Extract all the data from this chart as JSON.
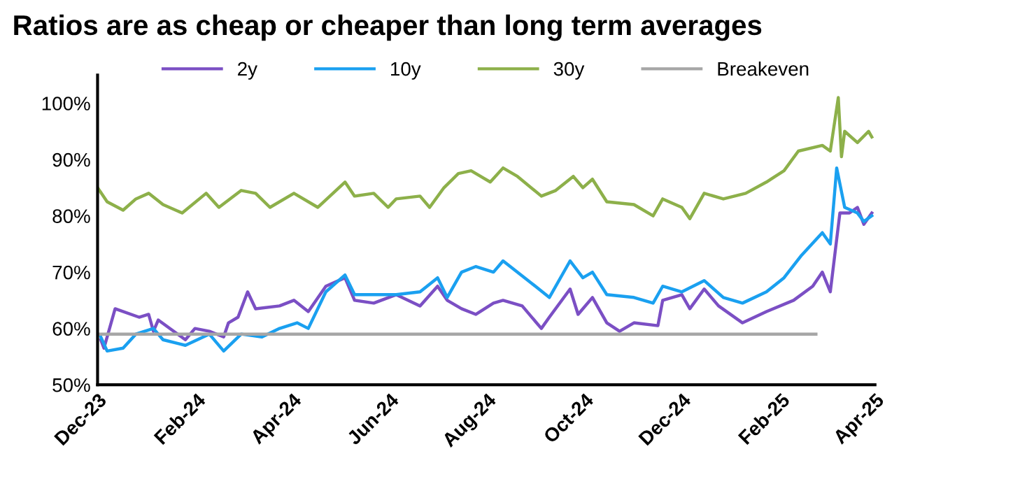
{
  "chart_data": {
    "type": "line",
    "title": "Ratios are as cheap or cheaper than long term averages",
    "series": [
      {
        "name": "2y",
        "color": "#7b4fc4",
        "x": [
          "2023-12-03",
          "2023-12-05",
          "2023-12-12",
          "2023-12-27",
          "2024-01-02",
          "2024-01-05",
          "2024-01-08",
          "2024-01-25",
          "2024-01-31",
          "2024-02-09",
          "2024-02-18",
          "2024-02-21",
          "2024-02-27",
          "2024-03-04",
          "2024-03-09",
          "2024-03-24",
          "2024-04-02",
          "2024-04-11",
          "2024-04-22",
          "2024-05-04",
          "2024-05-10",
          "2024-05-22",
          "2024-06-05",
          "2024-06-20",
          "2024-07-01",
          "2024-07-07",
          "2024-07-16",
          "2024-07-25",
          "2024-08-05",
          "2024-08-11",
          "2024-08-23",
          "2024-09-04",
          "2024-09-09",
          "2024-09-22",
          "2024-09-27",
          "2024-10-06",
          "2024-10-15",
          "2024-10-23",
          "2024-11-01",
          "2024-11-16",
          "2024-11-19",
          "2024-12-01",
          "2024-12-06",
          "2024-12-15",
          "2024-12-24",
          "2025-01-08",
          "2025-01-23",
          "2025-02-09",
          "2025-02-21",
          "2025-02-27",
          "2025-03-04",
          "2025-03-10",
          "2025-03-16",
          "2025-03-21",
          "2025-03-25",
          "2025-03-30"
        ],
        "values": [
          58,
          56.5,
          63.5,
          62,
          62.5,
          59.5,
          61.5,
          58,
          60,
          59.5,
          58.5,
          61,
          62,
          66.5,
          63.5,
          64,
          65,
          63,
          67.5,
          69,
          65,
          64.5,
          66,
          64,
          67.5,
          65,
          63.5,
          62.5,
          64.5,
          65,
          64,
          60,
          62,
          67,
          62.5,
          65.5,
          61,
          59.5,
          61,
          60.5,
          65,
          66,
          63.5,
          67,
          64,
          61,
          63,
          65,
          67.5,
          70,
          66.5,
          80.5,
          80.5,
          81.5,
          78.5,
          80.5
        ]
      },
      {
        "name": "10y",
        "color": "#1aa0f0",
        "x": [
          "2023-12-03",
          "2023-12-07",
          "2023-12-17",
          "2023-12-25",
          "2024-01-05",
          "2024-01-11",
          "2024-01-25",
          "2024-02-09",
          "2024-02-18",
          "2024-02-29",
          "2024-03-13",
          "2024-03-24",
          "2024-04-04",
          "2024-04-11",
          "2024-04-22",
          "2024-05-04",
          "2024-05-10",
          "2024-05-22",
          "2024-06-05",
          "2024-06-20",
          "2024-07-01",
          "2024-07-07",
          "2024-07-16",
          "2024-07-25",
          "2024-08-05",
          "2024-08-11",
          "2024-08-29",
          "2024-09-09",
          "2024-09-22",
          "2024-09-30",
          "2024-10-06",
          "2024-10-15",
          "2024-11-01",
          "2024-11-13",
          "2024-11-19",
          "2024-12-01",
          "2024-12-15",
          "2024-12-27",
          "2025-01-08",
          "2025-01-23",
          "2025-02-03",
          "2025-02-14",
          "2025-02-27",
          "2025-03-04",
          "2025-03-08",
          "2025-03-13",
          "2025-03-21",
          "2025-03-25",
          "2025-03-30"
        ],
        "values": [
          58.5,
          56,
          56.5,
          59,
          60,
          58,
          57,
          59,
          56,
          59,
          58.5,
          60,
          61,
          60,
          66.5,
          69.5,
          66,
          66,
          66,
          66.5,
          69,
          65.5,
          70,
          71,
          70,
          72,
          68,
          65.5,
          72,
          69,
          70,
          66,
          65.5,
          64.5,
          67.5,
          66.5,
          68.5,
          65.5,
          64.5,
          66.5,
          69,
          73,
          77,
          75,
          88.5,
          81.5,
          80.5,
          79,
          80
        ]
      },
      {
        "name": "30y",
        "color": "#8db04a",
        "x": [
          "2023-12-01",
          "2023-12-07",
          "2023-12-17",
          "2023-12-25",
          "2024-01-02",
          "2024-01-11",
          "2024-01-23",
          "2024-02-07",
          "2024-02-15",
          "2024-02-29",
          "2024-03-09",
          "2024-03-18",
          "2024-04-02",
          "2024-04-17",
          "2024-05-04",
          "2024-05-10",
          "2024-05-22",
          "2024-05-31",
          "2024-06-05",
          "2024-06-20",
          "2024-06-26",
          "2024-07-05",
          "2024-07-14",
          "2024-07-22",
          "2024-08-03",
          "2024-08-11",
          "2024-08-20",
          "2024-09-04",
          "2024-09-13",
          "2024-09-24",
          "2024-09-30",
          "2024-10-06",
          "2024-10-15",
          "2024-11-01",
          "2024-11-13",
          "2024-11-19",
          "2024-12-01",
          "2024-12-06",
          "2024-12-15",
          "2024-12-27",
          "2025-01-10",
          "2025-01-23",
          "2025-02-03",
          "2025-02-12",
          "2025-02-27",
          "2025-03-04",
          "2025-03-09",
          "2025-03-11",
          "2025-03-13",
          "2025-03-21",
          "2025-03-28",
          "2025-03-30"
        ],
        "values": [
          85,
          82.5,
          81,
          83,
          84,
          82,
          80.5,
          84,
          81.5,
          84.5,
          84,
          81.5,
          84,
          81.5,
          86,
          83.5,
          84,
          81.5,
          83,
          83.5,
          81.5,
          85,
          87.5,
          88,
          86,
          88.5,
          87,
          83.5,
          84.5,
          87,
          85,
          86.5,
          82.5,
          82,
          80,
          83,
          81.5,
          79.5,
          84,
          83,
          84,
          86,
          88,
          91.5,
          92.5,
          91.5,
          101,
          90.5,
          95,
          93,
          95,
          94
        ]
      },
      {
        "name": "Breakeven",
        "color": "#a6a6a6",
        "x": [
          "2023-12-01",
          "2025-02-23"
        ],
        "values": [
          59,
          59
        ]
      }
    ],
    "xlim": [
      "2023-12-01",
      "2025-04-01"
    ],
    "xticks": [
      {
        "value": "2023-12-01",
        "label": "Dec-23"
      },
      {
        "value": "2024-02-01",
        "label": "Feb-24"
      },
      {
        "value": "2024-04-01",
        "label": "Apr-24"
      },
      {
        "value": "2024-06-01",
        "label": "Jun-24"
      },
      {
        "value": "2024-08-01",
        "label": "Aug-24"
      },
      {
        "value": "2024-10-01",
        "label": "Oct-24"
      },
      {
        "value": "2024-12-01",
        "label": "Dec-24"
      },
      {
        "value": "2025-02-01",
        "label": "Feb-25"
      },
      {
        "value": "2025-04-01",
        "label": "Apr-25"
      }
    ],
    "ylim": [
      50,
      105
    ],
    "yticks": [
      {
        "value": 50,
        "label": "50%"
      },
      {
        "value": 60,
        "label": "60%"
      },
      {
        "value": 70,
        "label": "70%"
      },
      {
        "value": 80,
        "label": "80%"
      },
      {
        "value": 90,
        "label": "90%"
      },
      {
        "value": 100,
        "label": "100%"
      }
    ],
    "grid": false,
    "legend": "top",
    "marker": "none",
    "line_style": "solid"
  }
}
